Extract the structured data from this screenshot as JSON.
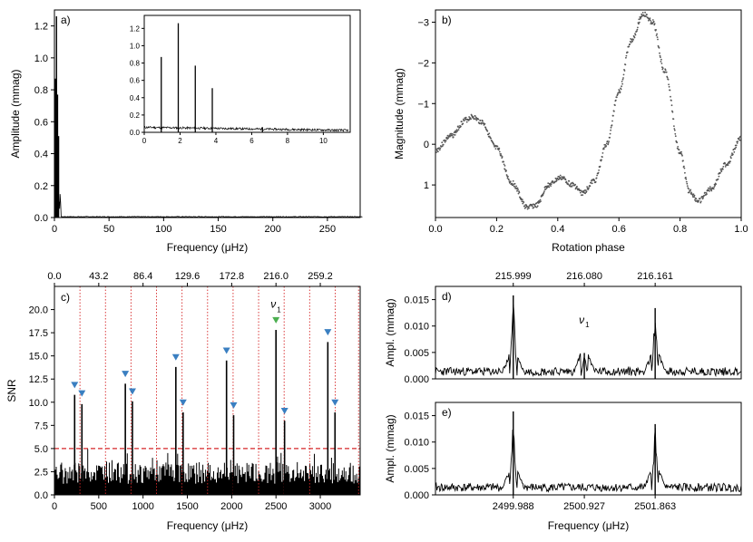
{
  "chart_data": [
    {
      "panel": "a",
      "panel_label": "a)",
      "type": "line",
      "xlabel": "Frequency (μHz)",
      "ylabel": "Amplitude (mmag)",
      "xlim": [
        0,
        280
      ],
      "ylim": [
        0,
        1.3
      ],
      "xticks": [
        "0",
        "50",
        "100",
        "150",
        "200",
        "250"
      ],
      "yticks": [
        "0.0",
        "0.2",
        "0.4",
        "0.6",
        "0.8",
        "1.0",
        "1.2"
      ],
      "peaks": [
        {
          "x": 0.9,
          "y": 0.87
        },
        {
          "x": 1.9,
          "y": 1.26
        },
        {
          "x": 2.85,
          "y": 0.77
        },
        {
          "x": 3.8,
          "y": 0.51
        }
      ],
      "inset": {
        "xlim": [
          0,
          11.5
        ],
        "ylim": [
          0,
          1.35
        ],
        "xticks": [
          "0",
          "2",
          "4",
          "6",
          "8",
          "10"
        ],
        "yticks": [
          "0.0",
          "0.2",
          "0.4",
          "0.6",
          "0.8",
          "1.0",
          "1.2"
        ],
        "peaks": [
          {
            "x": 0.95,
            "y": 0.87
          },
          {
            "x": 1.9,
            "y": 1.26
          },
          {
            "x": 2.85,
            "y": 0.77
          },
          {
            "x": 3.8,
            "y": 0.51
          },
          {
            "x": 6.6,
            "y": 0.06
          }
        ]
      }
    },
    {
      "panel": "b",
      "panel_label": "b)",
      "type": "scatter",
      "xlabel": "Rotation phase",
      "ylabel": "Magnitude (mmag)",
      "xlim": [
        0,
        1
      ],
      "ylim": [
        1.8,
        -3.3
      ],
      "y_inverted": true,
      "xticks": [
        "0.0",
        "0.2",
        "0.4",
        "0.6",
        "0.8",
        "1.0"
      ],
      "yticks": [
        "−3",
        "−2",
        "−1",
        "0",
        "1"
      ],
      "curve": [
        {
          "x": 0.0,
          "y": 0.15
        },
        {
          "x": 0.05,
          "y": -0.2
        },
        {
          "x": 0.1,
          "y": -0.6
        },
        {
          "x": 0.12,
          "y": -0.68
        },
        {
          "x": 0.15,
          "y": -0.55
        },
        {
          "x": 0.2,
          "y": 0.1
        },
        {
          "x": 0.25,
          "y": 0.95
        },
        {
          "x": 0.3,
          "y": 1.55
        },
        {
          "x": 0.33,
          "y": 1.5
        },
        {
          "x": 0.37,
          "y": 1.0
        },
        {
          "x": 0.41,
          "y": 0.82
        },
        {
          "x": 0.45,
          "y": 1.0
        },
        {
          "x": 0.48,
          "y": 1.2
        },
        {
          "x": 0.52,
          "y": 0.9
        },
        {
          "x": 0.56,
          "y": 0.0
        },
        {
          "x": 0.6,
          "y": -1.3
        },
        {
          "x": 0.64,
          "y": -2.55
        },
        {
          "x": 0.68,
          "y": -3.2
        },
        {
          "x": 0.71,
          "y": -3.0
        },
        {
          "x": 0.75,
          "y": -1.8
        },
        {
          "x": 0.8,
          "y": 0.2
        },
        {
          "x": 0.83,
          "y": 1.15
        },
        {
          "x": 0.86,
          "y": 1.4
        },
        {
          "x": 0.9,
          "y": 1.1
        },
        {
          "x": 0.95,
          "y": 0.5
        },
        {
          "x": 1.0,
          "y": -0.15
        }
      ]
    },
    {
      "panel": "c",
      "panel_label": "c)",
      "type": "bar",
      "xlabel": "Frequency (μHz)",
      "ylabel": "SNR",
      "xlim": [
        0,
        3450
      ],
      "ylim": [
        0,
        22.5
      ],
      "xticks": [
        "0",
        "500",
        "1000",
        "1500",
        "2000",
        "2500",
        "3000"
      ],
      "yticks": [
        "0.0",
        "2.5",
        "5.0",
        "7.5",
        "10.0",
        "12.5",
        "15.0",
        "17.5",
        "20.0"
      ],
      "top_xticks": [
        "0.0",
        "43.2",
        "86.4",
        "129.6",
        "172.8",
        "216.0",
        "259.2"
      ],
      "threshold": 5.0,
      "peak_label": "ν",
      "peak_label_sub": "1",
      "peaks": [
        {
          "x": 228,
          "y": 10.8
        },
        {
          "x": 310,
          "y": 9.8
        },
        {
          "x": 800,
          "y": 12.0
        },
        {
          "x": 880,
          "y": 10.1
        },
        {
          "x": 1370,
          "y": 13.8
        },
        {
          "x": 1452,
          "y": 8.9
        },
        {
          "x": 1942,
          "y": 14.5
        },
        {
          "x": 2022,
          "y": 8.6
        },
        {
          "x": 2500,
          "y": 17.8
        },
        {
          "x": 2597,
          "y": 8.0
        },
        {
          "x": 3085,
          "y": 16.5
        },
        {
          "x": 3166,
          "y": 8.9
        }
      ],
      "markers": [
        {
          "x": 228,
          "y": 11.8,
          "color": "#3a7fc1"
        },
        {
          "x": 310,
          "y": 10.9,
          "color": "#3a7fc1"
        },
        {
          "x": 800,
          "y": 13.0,
          "color": "#3a7fc1"
        },
        {
          "x": 880,
          "y": 11.1,
          "color": "#3a7fc1"
        },
        {
          "x": 1370,
          "y": 14.8,
          "color": "#3a7fc1"
        },
        {
          "x": 1452,
          "y": 9.9,
          "color": "#3a7fc1"
        },
        {
          "x": 1942,
          "y": 15.5,
          "color": "#3a7fc1"
        },
        {
          "x": 2022,
          "y": 9.6,
          "color": "#3a7fc1"
        },
        {
          "x": 2500,
          "y": 18.8,
          "color": "#4caf50"
        },
        {
          "x": 2597,
          "y": 9.0,
          "color": "#3a7fc1"
        },
        {
          "x": 3085,
          "y": 17.5,
          "color": "#3a7fc1"
        },
        {
          "x": 3166,
          "y": 9.9,
          "color": "#3a7fc1"
        }
      ],
      "vlines": [
        288,
        576,
        864,
        1152,
        1440,
        1728,
        2016,
        2304,
        2592,
        2880,
        3168,
        3432
      ]
    },
    {
      "panel": "d",
      "panel_label": "d)",
      "type": "line",
      "ylabel": "Ampl. (mmag)",
      "xlim": [
        2498.96,
        2503.0
      ],
      "ylim": [
        0,
        0.0175
      ],
      "yticks": [
        "0.000",
        "0.005",
        "0.010",
        "0.015"
      ],
      "top_xticks": [
        "215.999",
        "216.080",
        "216.161"
      ],
      "peak_label": "ν",
      "peak_label_sub": "1",
      "peaks": [
        {
          "x": 2499.988,
          "y": 0.0158
        },
        {
          "x": 2500.927,
          "y": 0.0049
        },
        {
          "x": 2501.863,
          "y": 0.0134
        }
      ]
    },
    {
      "panel": "e",
      "panel_label": "e)",
      "type": "line",
      "xlabel": "Frequency (μHz)",
      "ylabel": "Ampl. (mmag)",
      "xlim": [
        2498.96,
        2503.0
      ],
      "ylim": [
        0,
        0.0175
      ],
      "yticks": [
        "0.000",
        "0.005",
        "0.010",
        "0.015"
      ],
      "xticks": [
        "2499.988",
        "2500.927",
        "2501.863"
      ],
      "peaks": [
        {
          "x": 2499.988,
          "y": 0.0158
        },
        {
          "x": 2501.863,
          "y": 0.0134
        }
      ]
    }
  ]
}
